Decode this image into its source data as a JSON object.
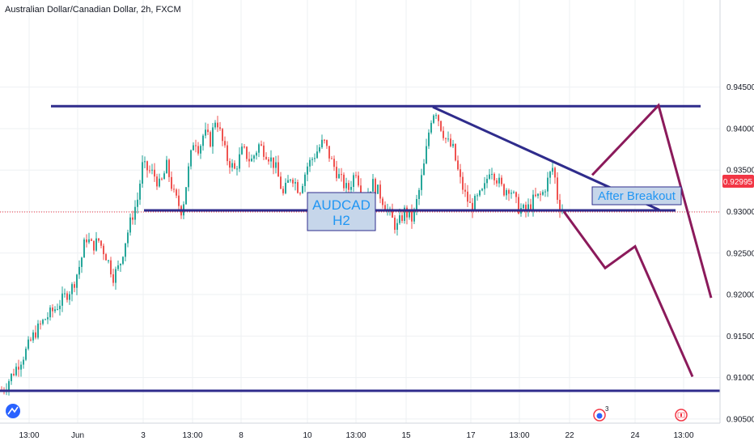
{
  "window": {
    "title": "Australian Dollar/Canadian Dollar, 2h, FXCM"
  },
  "price_badge": {
    "label": "0.92995",
    "color": "#f23645"
  },
  "annotations": {
    "symbol_box": {
      "line1": "AUDCAD",
      "line2": "H2"
    },
    "breakout_box": "After Breakout"
  },
  "events": {
    "count": "3"
  },
  "colors": {
    "up": "#26a69a",
    "down": "#ef5350",
    "trendline": "#2f2c8c",
    "projection": "#8b1a5b",
    "grid": "#eef0f3",
    "box_fill": "#c6d6ea",
    "box_text": "#2196f3"
  },
  "chart_data": {
    "type": "candlestick",
    "title": "Australian Dollar/Canadian Dollar, 2h, FXCM",
    "y_ticks": [
      "0.94500",
      "0.94000",
      "0.93500",
      "0.93000",
      "0.92500",
      "0.92000",
      "0.91500",
      "0.91000",
      "0.90500"
    ],
    "x_ticks": [
      "13:00",
      "Jun",
      "3",
      "13:00",
      "8",
      "10",
      "13:00",
      "15",
      "17",
      "13:00",
      "22",
      "24",
      "13:00"
    ],
    "ylim": [
      0.9045,
      0.9555
    ],
    "last_price": 0.92995,
    "candle_path": [
      [
        0,
        0.9082
      ],
      [
        8,
        0.9092
      ],
      [
        20,
        0.9112
      ],
      [
        30,
        0.9128
      ],
      [
        42,
        0.9152
      ],
      [
        55,
        0.917
      ],
      [
        68,
        0.9183
      ],
      [
        78,
        0.9195
      ],
      [
        90,
        0.921
      ],
      [
        100,
        0.924
      ],
      [
        106,
        0.927
      ],
      [
        114,
        0.9258
      ],
      [
        122,
        0.9265
      ],
      [
        132,
        0.9245
      ],
      [
        140,
        0.9222
      ],
      [
        148,
        0.9235
      ],
      [
        155,
        0.9265
      ],
      [
        162,
        0.929
      ],
      [
        170,
        0.9315
      ],
      [
        176,
        0.9355
      ],
      [
        183,
        0.935
      ],
      [
        190,
        0.9345
      ],
      [
        198,
        0.933
      ],
      [
        206,
        0.9355
      ],
      [
        215,
        0.932
      ],
      [
        225,
        0.93
      ],
      [
        232,
        0.9345
      ],
      [
        240,
        0.939
      ],
      [
        246,
        0.9375
      ],
      [
        252,
        0.9395
      ],
      [
        260,
        0.9385
      ],
      [
        267,
        0.9415
      ],
      [
        272,
        0.9395
      ],
      [
        280,
        0.9365
      ],
      [
        290,
        0.935
      ],
      [
        300,
        0.9375
      ],
      [
        310,
        0.936
      ],
      [
        320,
        0.938
      ],
      [
        330,
        0.937
      ],
      [
        340,
        0.9355
      ],
      [
        350,
        0.932
      ],
      [
        360,
        0.9345
      ],
      [
        370,
        0.9325
      ],
      [
        380,
        0.9355
      ],
      [
        390,
        0.937
      ],
      [
        400,
        0.9385
      ],
      [
        410,
        0.936
      ],
      [
        420,
        0.934
      ],
      [
        430,
        0.9325
      ],
      [
        440,
        0.935
      ],
      [
        450,
        0.931
      ],
      [
        460,
        0.9335
      ],
      [
        470,
        0.932
      ],
      [
        480,
        0.93
      ],
      [
        490,
        0.928
      ],
      [
        500,
        0.93
      ],
      [
        510,
        0.929
      ],
      [
        518,
        0.9325
      ],
      [
        525,
        0.936
      ],
      [
        532,
        0.941
      ],
      [
        538,
        0.9425
      ],
      [
        544,
        0.9405
      ],
      [
        552,
        0.9385
      ],
      [
        560,
        0.9375
      ],
      [
        568,
        0.934
      ],
      [
        575,
        0.932
      ],
      [
        582,
        0.9305
      ],
      [
        590,
        0.9315
      ],
      [
        598,
        0.9325
      ],
      [
        606,
        0.9355
      ],
      [
        614,
        0.934
      ],
      [
        622,
        0.9325
      ],
      [
        630,
        0.933
      ],
      [
        640,
        0.9305
      ],
      [
        650,
        0.93
      ],
      [
        660,
        0.9315
      ],
      [
        670,
        0.932
      ],
      [
        678,
        0.934
      ],
      [
        684,
        0.9355
      ],
      [
        690,
        0.931
      ],
      [
        697,
        0.93
      ]
    ],
    "drawings": {
      "resistance": [
        [
          63,
          0.9427
        ],
        [
          866,
          0.9427
        ]
      ],
      "support_neckline": [
        [
          178,
          0.93015
        ],
        [
          835,
          0.93015
        ]
      ],
      "descending_trendline": [
        [
          535,
          0.9426
        ],
        [
          815,
          0.9302
        ]
      ],
      "bottom_support": [
        [
          0,
          0.9084
        ],
        [
          890,
          0.9084
        ]
      ],
      "bull_projection": [
        [
          732,
          0.9344
        ],
        [
          814,
          0.9428
        ],
        [
          879,
          0.9196
        ]
      ],
      "bear_projection": [
        [
          697,
          0.93
        ],
        [
          748,
          0.9232
        ],
        [
          785,
          0.9258
        ],
        [
          856,
          0.9101
        ]
      ]
    }
  }
}
